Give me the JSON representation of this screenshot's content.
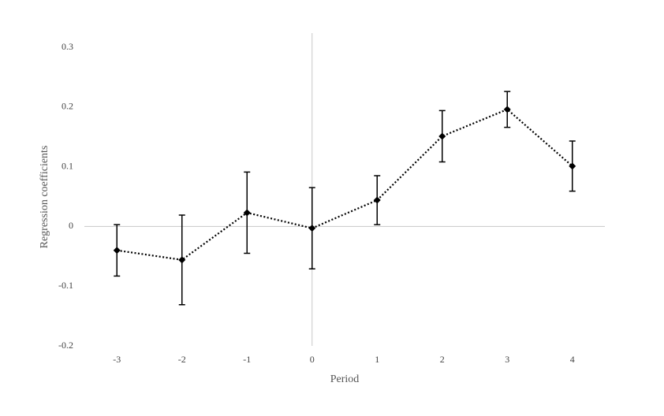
{
  "chart_data": {
    "type": "line",
    "x_label": "Period",
    "y_label": "Regression coefficients",
    "x": [
      -3,
      -2,
      -1,
      0,
      1,
      2,
      3,
      4
    ],
    "series": [
      {
        "color": "#000000",
        "values": [
          -0.04,
          -0.056,
          0.023,
          -0.003,
          0.044,
          0.151,
          0.196,
          0.101
        ],
        "errors": [
          0.043,
          0.075,
          0.068,
          0.068,
          0.041,
          0.043,
          0.03,
          0.042
        ]
      }
    ],
    "xlim": [
      -3.5,
      4.5
    ],
    "xticks": [
      -3,
      -2,
      -1,
      0,
      1,
      2,
      3,
      4
    ],
    "ylim": [
      -0.2,
      0.3
    ],
    "yticks": [
      0.3,
      0.2,
      0.1,
      0,
      -0.1,
      -0.2
    ],
    "grid": false,
    "line_style": "dotted",
    "marker": "diamond"
  }
}
